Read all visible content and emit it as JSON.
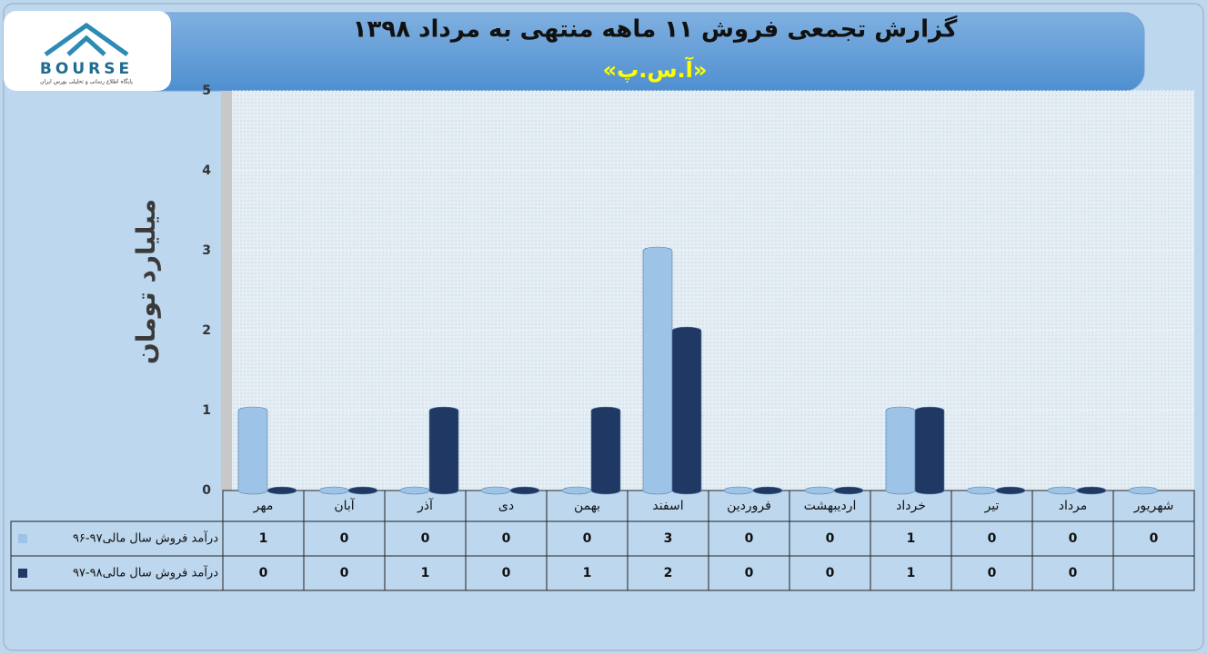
{
  "logo": {
    "text": "BOURSE",
    "caption": "پایگاه اطلاع رسانی و تحلیلی بورس ایران"
  },
  "chart_data": {
    "type": "bar",
    "title": "گزارش تجمعی فروش ۱۱ ماهه منتهی به مرداد ۱۳۹۸",
    "subtitle": "«آ.س.پ»",
    "y_label": "میلیارد تومان",
    "categories": [
      "مهر",
      "آبان",
      "آذر",
      "دی",
      "بهمن",
      "اسفند",
      "فروردین",
      "اردیبهشت",
      "خرداد",
      "تیر",
      "مرداد",
      "شهریور"
    ],
    "series": [
      {
        "name": "درآمد فروش سال مالی۹۷-۹۶",
        "color": "#9dc3e6",
        "values": [
          1,
          0,
          0,
          0,
          0,
          3,
          0,
          0,
          1,
          0,
          0,
          0
        ]
      },
      {
        "name": "درآمد فروش سال مالی۹۸-۹۷",
        "color": "#1f3864",
        "values": [
          0,
          0,
          1,
          0,
          1,
          2,
          0,
          0,
          1,
          0,
          0,
          null
        ]
      }
    ],
    "ylim": [
      0,
      5
    ],
    "yticks": [
      0,
      1,
      2,
      3,
      4,
      5
    ],
    "grid": true
  }
}
